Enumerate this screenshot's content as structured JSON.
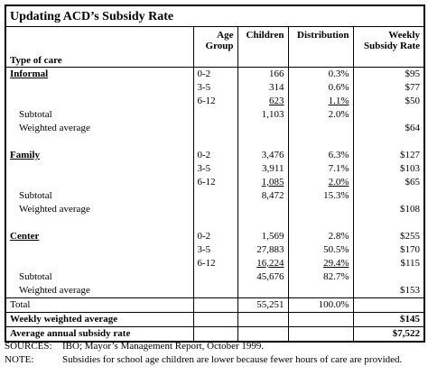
{
  "title": "Updating ACD’s Subsidy Rate",
  "columns": [
    "Type of care",
    "Age Group",
    "Children",
    "Distribution",
    "Weekly Subsidy Rate"
  ],
  "groups": [
    {
      "name": "Informal",
      "rows": [
        [
          "0-2",
          "166",
          "0.3%",
          "$95"
        ],
        [
          "3-5",
          "314",
          "0.6%",
          "$77"
        ],
        [
          "6-12",
          "623",
          "1.1%",
          "$50"
        ]
      ],
      "subtotal": {
        "label": "Subtotal",
        "children": "1,103",
        "distribution": "2.0%"
      },
      "weighted_average": {
        "label": "Weighted average",
        "rate": "$64"
      }
    },
    {
      "name": "Family",
      "rows": [
        [
          "0-2",
          "3,476",
          "6.3%",
          "$127"
        ],
        [
          "3-5",
          "3,911",
          "7.1%",
          "$103"
        ],
        [
          "6-12",
          "1,085",
          "2.0%",
          "$65"
        ]
      ],
      "subtotal": {
        "label": "Subtotal",
        "children": "8,472",
        "distribution": "15.3%"
      },
      "weighted_average": {
        "label": "Weighted average",
        "rate": "$108"
      }
    },
    {
      "name": "Center",
      "rows": [
        [
          "0-2",
          "1,569",
          "2.8%",
          "$255"
        ],
        [
          "3-5",
          "27,883",
          "50.5%",
          "$170"
        ],
        [
          "6-12",
          "16,224",
          "29.4%",
          "$115"
        ]
      ],
      "subtotal": {
        "label": "Subtotal",
        "children": "45,676",
        "distribution": "82.7%"
      },
      "weighted_average": {
        "label": "Weighted average",
        "rate": "$153"
      }
    }
  ],
  "total": {
    "label": "Total",
    "children": "55,251",
    "distribution": "100.0%"
  },
  "weekly_weighted_average": {
    "label": "Weekly weighted average",
    "rate": "$145"
  },
  "average_annual_subsidy_rate": {
    "label": "Average annual subsidy rate",
    "rate": "$7,522"
  },
  "notes": [
    {
      "label": "SOURCES:",
      "text": "IBO; Mayor’s Management Report, October 1999."
    },
    {
      "label": "NOTE:",
      "text": "Subsidies for school age children are lower because fewer hours of care are provided."
    }
  ]
}
